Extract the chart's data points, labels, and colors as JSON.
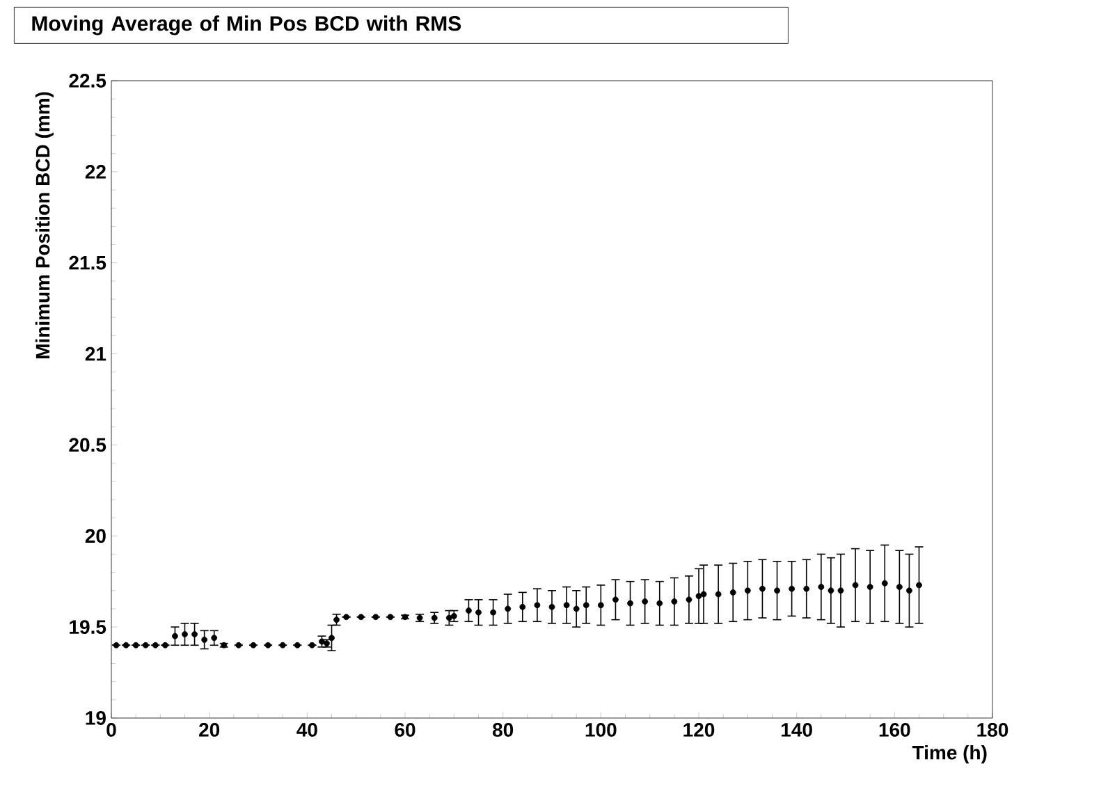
{
  "chart_data": {
    "type": "scatter",
    "title": "Moving Average of Min Pos BCD with RMS",
    "xlabel": "Time (h)",
    "ylabel": "Minimum Position BCD (mm)",
    "xlim": [
      0,
      180
    ],
    "ylim": [
      19,
      22.5
    ],
    "xticks": [
      0,
      20,
      40,
      60,
      80,
      100,
      120,
      140,
      160,
      180
    ],
    "yticks": [
      19,
      19.5,
      20,
      20.5,
      21,
      21.5,
      22,
      22.5
    ],
    "marker": "circle",
    "color": "#000000",
    "x": [
      1,
      3,
      5,
      7,
      9,
      11,
      13,
      15,
      17,
      19,
      21,
      23,
      26,
      29,
      32,
      35,
      38,
      41,
      43,
      44,
      45,
      46,
      48,
      51,
      54,
      57,
      60,
      63,
      66,
      69,
      70,
      73,
      75,
      78,
      81,
      84,
      87,
      90,
      93,
      95,
      97,
      100,
      103,
      106,
      109,
      112,
      115,
      118,
      120,
      121,
      124,
      127,
      130,
      133,
      136,
      139,
      142,
      145,
      147,
      149,
      152,
      155,
      158,
      161,
      163,
      165
    ],
    "values": [
      19.4,
      19.4,
      19.4,
      19.4,
      19.4,
      19.4,
      19.45,
      19.46,
      19.46,
      19.43,
      19.44,
      19.4,
      19.4,
      19.4,
      19.4,
      19.4,
      19.4,
      19.4,
      19.42,
      19.41,
      19.44,
      19.54,
      19.555,
      19.555,
      19.555,
      19.555,
      19.555,
      19.55,
      19.55,
      19.55,
      19.56,
      19.59,
      19.58,
      19.58,
      19.6,
      19.61,
      19.62,
      19.61,
      19.62,
      19.6,
      19.62,
      19.62,
      19.65,
      19.63,
      19.64,
      19.63,
      19.64,
      19.65,
      19.67,
      19.68,
      19.68,
      19.69,
      19.7,
      19.71,
      19.7,
      19.71,
      19.71,
      19.72,
      19.7,
      19.7,
      19.73,
      19.72,
      19.74,
      19.72,
      19.7,
      19.73
    ],
    "errors": [
      0,
      0,
      0,
      0,
      0,
      0,
      0.05,
      0.06,
      0.06,
      0.05,
      0.04,
      0.01,
      0,
      0,
      0,
      0,
      0,
      0,
      0.03,
      0.02,
      0.07,
      0.03,
      0,
      0,
      0,
      0,
      0.01,
      0.02,
      0.03,
      0.04,
      0.03,
      0.06,
      0.07,
      0.07,
      0.08,
      0.08,
      0.09,
      0.09,
      0.1,
      0.1,
      0.1,
      0.11,
      0.11,
      0.12,
      0.12,
      0.12,
      0.13,
      0.13,
      0.15,
      0.16,
      0.16,
      0.16,
      0.16,
      0.16,
      0.16,
      0.15,
      0.16,
      0.18,
      0.18,
      0.2,
      0.2,
      0.2,
      0.21,
      0.2,
      0.2,
      0.21
    ]
  }
}
